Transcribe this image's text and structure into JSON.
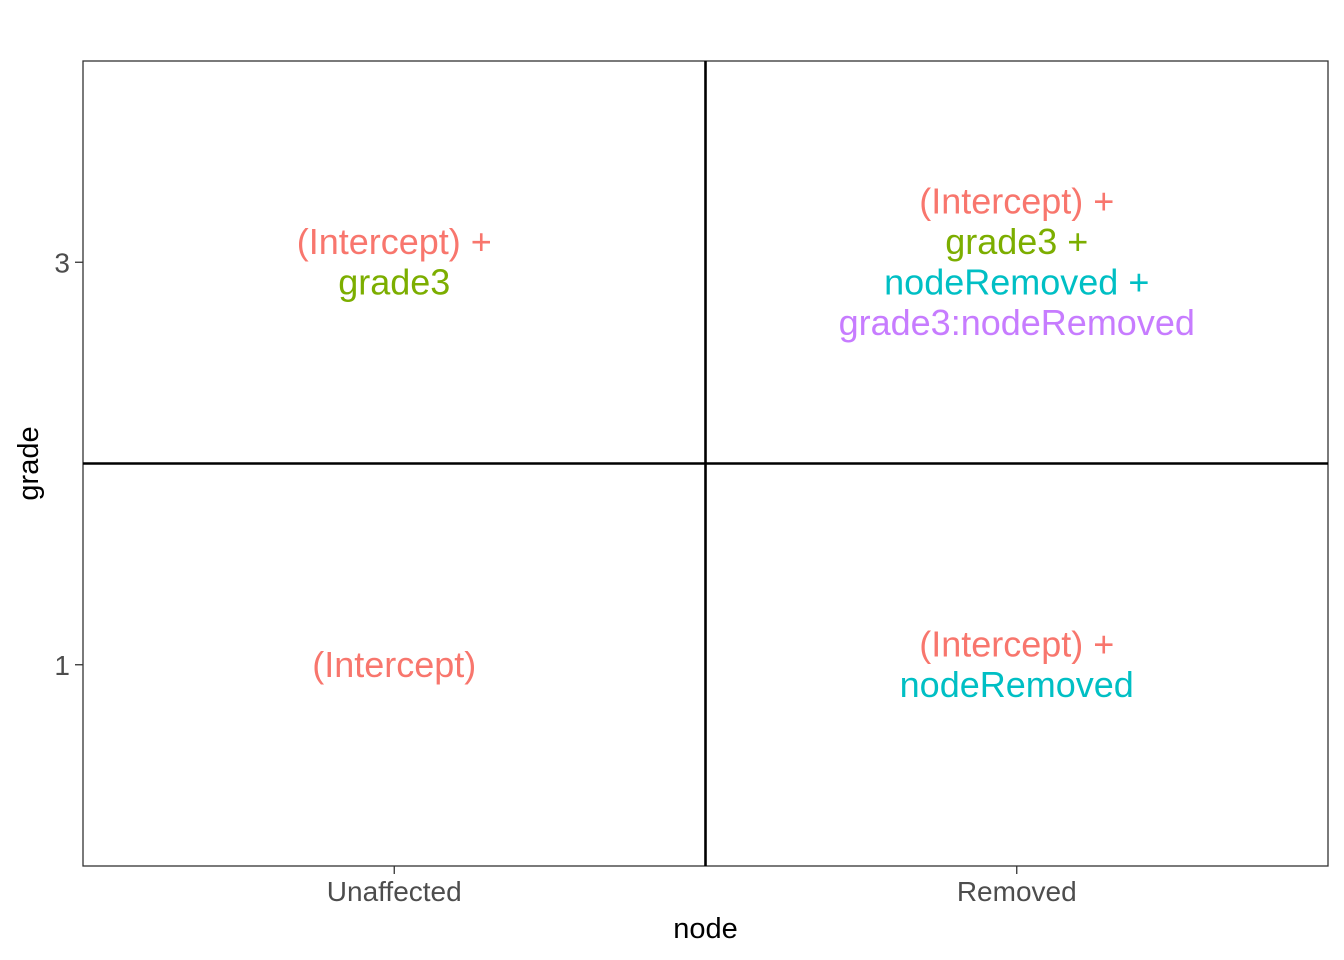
{
  "chart_data": {
    "type": "table",
    "xlabel": "node",
    "ylabel": "grade",
    "x_categories": [
      "Unaffected",
      "Removed"
    ],
    "y_ticks": [
      "1",
      "3"
    ],
    "grid": false,
    "term_colors": {
      "(Intercept)": "#F8766D",
      "grade3": "#7CAE00",
      "nodeRemoved": "#00BFC4",
      "grade3:nodeRemoved": "#C77CFF"
    },
    "cells": [
      {
        "x": "Unaffected",
        "y": "3",
        "lines": [
          {
            "text": "(Intercept) +",
            "term": "(Intercept)"
          },
          {
            "text": "grade3",
            "term": "grade3"
          }
        ]
      },
      {
        "x": "Removed",
        "y": "3",
        "lines": [
          {
            "text": "(Intercept) +",
            "term": "(Intercept)"
          },
          {
            "text": "grade3 +",
            "term": "grade3"
          },
          {
            "text": "nodeRemoved +",
            "term": "nodeRemoved"
          },
          {
            "text": "grade3:nodeRemoved",
            "term": "grade3:nodeRemoved"
          }
        ]
      },
      {
        "x": "Unaffected",
        "y": "1",
        "lines": [
          {
            "text": "(Intercept)",
            "term": "(Intercept)"
          }
        ]
      },
      {
        "x": "Removed",
        "y": "1",
        "lines": [
          {
            "text": "(Intercept) +",
            "term": "(Intercept)"
          },
          {
            "text": "nodeRemoved",
            "term": "nodeRemoved"
          }
        ]
      }
    ]
  }
}
